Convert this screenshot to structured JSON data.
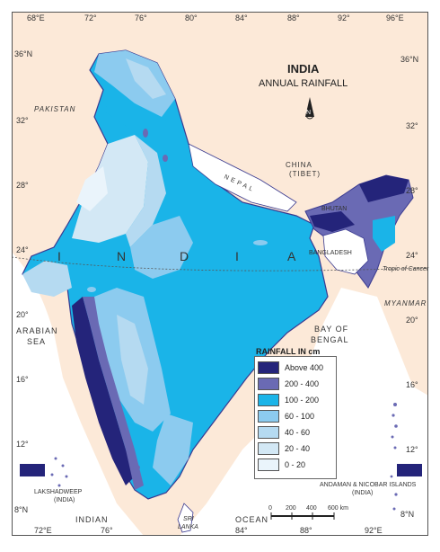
{
  "title": {
    "main": "INDIA",
    "sub": "ANNUAL RAINFALL"
  },
  "longitudes_top": [
    "68°E",
    "72°",
    "76°",
    "80°",
    "84°",
    "88°",
    "92°",
    "96°E"
  ],
  "longitudes_bottom": [
    "72°E",
    "76°",
    "84°",
    "88°",
    "92°E"
  ],
  "latitudes_left": [
    "36°N",
    "32°",
    "28°",
    "24°",
    "20°",
    "16°",
    "12°",
    "8°N"
  ],
  "latitudes_right": [
    "36°N",
    "32°",
    "28°",
    "24°",
    "20°",
    "16°",
    "12°",
    "8°N"
  ],
  "labels": {
    "pakistan": "PAKISTAN",
    "china": "CHINA",
    "tibet": "(TIBET)",
    "nepal": "NEPAL",
    "bhutan": "BHUTAN",
    "bangladesh": "BANGLADESH",
    "myanmar": "MYANMAR",
    "india_letters": [
      "I",
      "N",
      "D",
      "I",
      "A"
    ],
    "tropic": "Tropic of Cancer",
    "arabian_sea_1": "ARABIAN",
    "arabian_sea_2": "SEA",
    "bay_1": "BAY OF",
    "bay_2": "BENGAL",
    "indian": "INDIAN",
    "ocean": "OCEAN",
    "sri_lanka_1": "SRI",
    "sri_lanka_2": "LANKA",
    "lakshadweep_1": "LAKSHADWEEP",
    "lakshadweep_2": "(INDIA)",
    "andaman_1": "ANDAMAN & NICOBAR ISLANDS",
    "andaman_2": "(INDIA)",
    "north": "N"
  },
  "scale": {
    "ticks": [
      "0",
      "200",
      "400",
      "600 km"
    ]
  },
  "legend": {
    "title": "RAINFALL IN cm",
    "items": [
      {
        "label": "Above 400",
        "color": "#24247a"
      },
      {
        "label": "200 - 400",
        "color": "#6a6ab4"
      },
      {
        "label": "100 - 200",
        "color": "#1ab4e8"
      },
      {
        "label": "60 - 100",
        "color": "#8ccbef"
      },
      {
        "label": "40 - 60",
        "color": "#b5daf1"
      },
      {
        "label": "20 - 40",
        "color": "#d3e8f5"
      },
      {
        "label": "0 - 20",
        "color": "#eaf4fb"
      }
    ]
  },
  "colors": {
    "background": "#fce9d8",
    "outside": "#ffffff",
    "border": "#3a3a90"
  }
}
